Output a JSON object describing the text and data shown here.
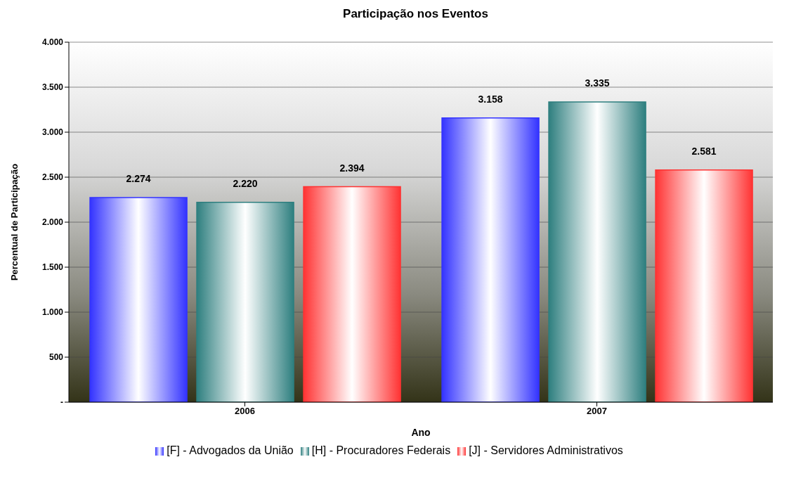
{
  "chart_data": {
    "type": "bar",
    "title": "Participação nos Eventos",
    "xlabel": "Ano",
    "ylabel": "Percentual de Participação",
    "categories": [
      "2006",
      "2007"
    ],
    "series": [
      {
        "name": "[F] - Advogados da União",
        "color": "#3333ff",
        "values": [
          2274,
          3158
        ],
        "value_labels": [
          "2.274",
          "3.158"
        ]
      },
      {
        "name": "[H] - Procuradores Federais",
        "color": "#2e7f7f",
        "values": [
          2220,
          3335
        ],
        "value_labels": [
          "2.220",
          "3.335"
        ]
      },
      {
        "name": "[J] - Servidores Administrativos",
        "color": "#ff3333",
        "values": [
          2394,
          2581
        ],
        "value_labels": [
          "2.394",
          "2.581"
        ]
      }
    ],
    "ylim": [
      0,
      4000
    ],
    "yticks": [
      {
        "value": 0,
        "label": "-"
      },
      500,
      {
        "value": 1000,
        "label": "1.000"
      },
      {
        "value": 1500,
        "label": "1.500"
      },
      {
        "value": 2000,
        "label": "2.000"
      },
      {
        "value": 2500,
        "label": "2.500"
      },
      {
        "value": 3000,
        "label": "3.000"
      },
      {
        "value": 3500,
        "label": "3.500"
      },
      {
        "value": 4000,
        "label": "4.000"
      }
    ],
    "grid": "y",
    "legend": "bottom"
  }
}
